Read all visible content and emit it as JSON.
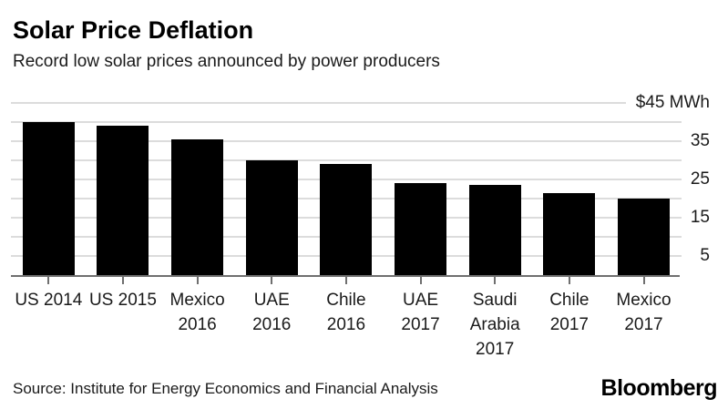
{
  "header": {
    "title": "Solar Price Deflation",
    "subtitle": "Record low solar prices announced by power producers"
  },
  "footer": {
    "source": "Source: Institute for Energy Economics and Financial Analysis",
    "brand": "Bloomberg"
  },
  "chart_data": {
    "type": "bar",
    "title": "Solar Price Deflation",
    "subtitle": "Record low solar prices announced by power producers",
    "unit": "$ per MWh",
    "categories": [
      "US 2014",
      "US 2015",
      "Mexico 2016",
      "UAE 2016",
      "Chile 2016",
      "UAE 2017",
      "Saudi Arabia 2017",
      "Chile 2017",
      "Mexico 2017"
    ],
    "category_lines": [
      [
        "US 2014"
      ],
      [
        "US 2015"
      ],
      [
        "Mexico",
        "2016"
      ],
      [
        "UAE",
        "2016"
      ],
      [
        "Chile",
        "2016"
      ],
      [
        "UAE",
        "2017"
      ],
      [
        "Saudi",
        "Arabia",
        "2017"
      ],
      [
        "Chile",
        "2017"
      ],
      [
        "Mexico",
        "2017"
      ]
    ],
    "values": [
      40,
      39,
      35.5,
      30,
      29,
      24,
      23.5,
      21.5,
      20
    ],
    "ylim": [
      0,
      45
    ],
    "ytick_step": 5,
    "labeled_ticks": [
      45,
      35,
      25,
      15,
      5
    ],
    "ytick_labels": [
      "$45 MWh",
      "35",
      "25",
      "15",
      "5"
    ],
    "y_axis_side": "right",
    "grid": true,
    "legend": false,
    "bar_color": "#000000",
    "gridline_color": "#dcdcdc",
    "axis_color": "#6f6f6f",
    "label_color": "#1a1a1a"
  }
}
